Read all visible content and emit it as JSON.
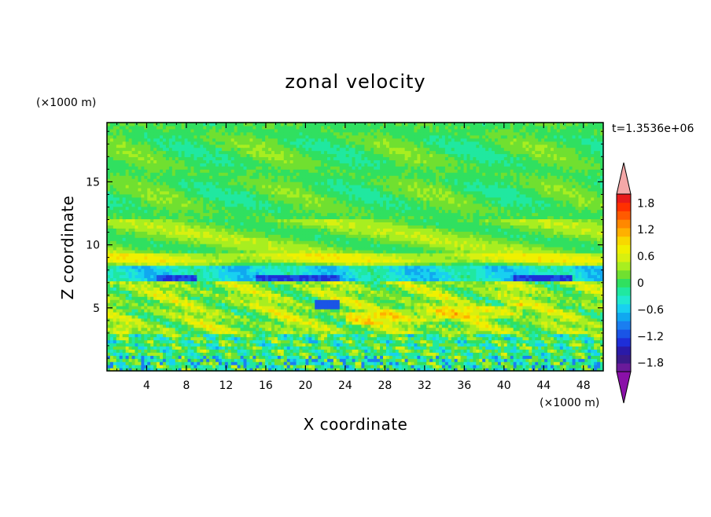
{
  "chart_data": {
    "type": "heatmap",
    "title": "zonal velocity",
    "xlabel": "X coordinate",
    "ylabel": "Z coordinate",
    "x_unit": "(×1000 m)",
    "y_unit": "(×1000 m)",
    "time_label": "t=1.3536e+06",
    "xlim": [
      0,
      50
    ],
    "ylim": [
      0,
      19.7
    ],
    "x_ticks": [
      4,
      8,
      12,
      16,
      20,
      24,
      28,
      32,
      36,
      40,
      44,
      48
    ],
    "y_ticks": [
      5,
      10,
      15
    ],
    "colorbar": {
      "min": -2.0,
      "max": 2.0,
      "step": 0.2,
      "tick_values": [
        1.8,
        1.2,
        0.6,
        0,
        -0.6,
        -1.2,
        -1.8
      ],
      "tick_labels": [
        "1.8",
        "1.2",
        "0.6",
        "0",
        "−0.6",
        "−1.2",
        "−1.8"
      ],
      "colors": [
        "#6a1a9a",
        "#3a1a8a",
        "#2a1aa8",
        "#1e2ed8",
        "#1a55e6",
        "#1a7ef0",
        "#10a8f0",
        "#18d0f0",
        "#20e8d0",
        "#20e8a0",
        "#30e060",
        "#70e030",
        "#a8ee20",
        "#d8f010",
        "#f0f000",
        "#f8d800",
        "#ffb000",
        "#ff8800",
        "#ff5a00",
        "#ff3000",
        "#e81a1a"
      ],
      "over_color": "#f4a8a8",
      "under_color": "#8a10a8"
    },
    "field_description_rows": [
      {
        "z_range": [
          12,
          19.7
        ],
        "mean_value": 0.05
      },
      {
        "z_range": [
          8.3,
          12
        ],
        "mean_value": 0.2
      },
      {
        "z_range": [
          7.2,
          8.3
        ],
        "mean_value": -0.5
      },
      {
        "z_range": [
          3,
          7.2
        ],
        "mean_value": 0.4
      },
      {
        "z_range": [
          0,
          3
        ],
        "mean_value": -0.1
      }
    ]
  }
}
